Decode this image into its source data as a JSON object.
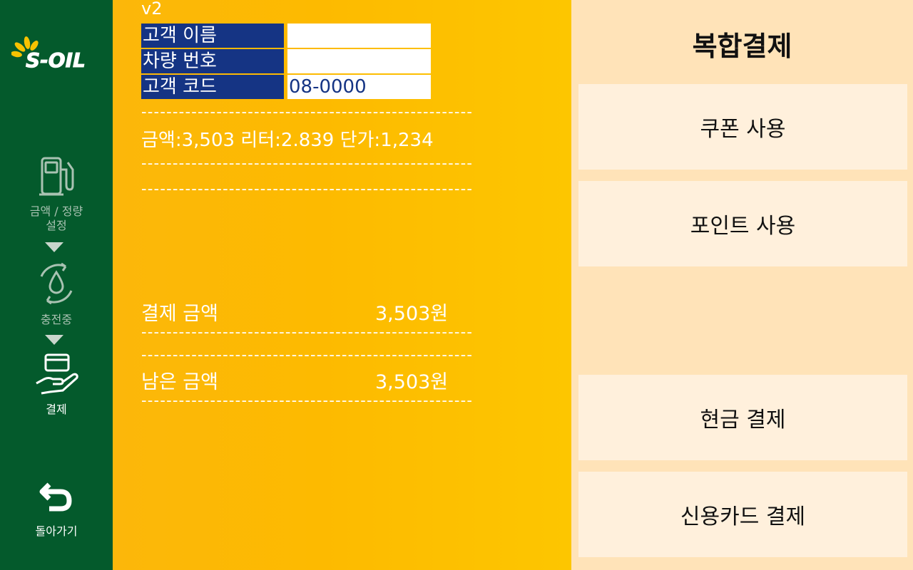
{
  "sidebar": {
    "logo_text": "S-OIL",
    "steps": [
      {
        "label": "금액 / 정량\n설정",
        "icon": "fuel-pump-icon"
      },
      {
        "label": "충전중",
        "icon": "refuel-drop-icon"
      },
      {
        "label": "결제",
        "icon": "card-hand-icon"
      }
    ],
    "back_label": "돌아가기",
    "back_icon": "return-arrow-icon"
  },
  "main": {
    "version": "v2",
    "customer": {
      "name_label": "고객 이름",
      "name_value": "",
      "car_label": "차량 번호",
      "car_value": "",
      "code_label": "고객 코드",
      "code_value": "08-0000"
    },
    "summary": "금액:3,503  리터:2.839  단가:1,234",
    "dash_line": "-----------------------------------------------------",
    "payment_amount_label": "결제 금액",
    "payment_amount_value": "3,503원",
    "remaining_amount_label": "남은 금액",
    "remaining_amount_value": "3,503원"
  },
  "right": {
    "title": "복합결제",
    "coupon_button": "쿠폰 사용",
    "point_button": "포인트 사용",
    "cash_button": "현금 결제",
    "card_button": "신용카드 결제"
  },
  "colors": {
    "sidebar_bg": "#045a2c",
    "main_bg": "#fdba00",
    "label_bg": "#153484",
    "right_bg": "#ffe3b8",
    "button_bg": "#fff0dc"
  }
}
